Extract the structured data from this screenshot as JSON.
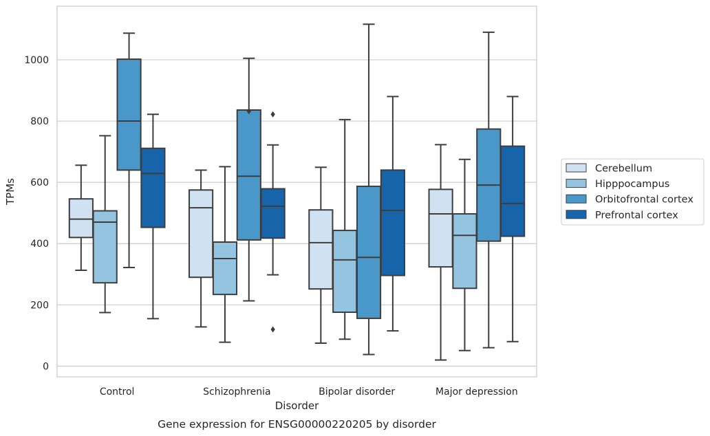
{
  "chart_data": {
    "type": "boxplot",
    "caption": "Gene expression for ENSG00000220205 by disorder",
    "xlabel": "Disorder",
    "ylabel": "TPMs",
    "ylim": [
      -35,
      1175
    ],
    "yticks": [
      0,
      200,
      400,
      600,
      800,
      1000
    ],
    "grid": "horizontal",
    "legend_position": "right",
    "categories": [
      "Control",
      "Schizophrenia",
      "Bipolar disorder",
      "Major depression"
    ],
    "series": [
      {
        "name": "Cerebellum",
        "color": "#d0e1f2",
        "boxes": [
          {
            "whisker_low": 313,
            "q1": 420,
            "median": 480,
            "q3": 546,
            "whisker_high": 656,
            "outliers": []
          },
          {
            "whisker_low": 128,
            "q1": 290,
            "median": 517,
            "q3": 575,
            "whisker_high": 640,
            "outliers": []
          },
          {
            "whisker_low": 75,
            "q1": 252,
            "median": 403,
            "q3": 510,
            "whisker_high": 649,
            "outliers": []
          },
          {
            "whisker_low": 20,
            "q1": 324,
            "median": 497,
            "q3": 577,
            "whisker_high": 723,
            "outliers": []
          }
        ]
      },
      {
        "name": "Hipppocampus",
        "color": "#94c4df",
        "boxes": [
          {
            "whisker_low": 175,
            "q1": 272,
            "median": 470,
            "q3": 507,
            "whisker_high": 752,
            "outliers": []
          },
          {
            "whisker_low": 78,
            "q1": 234,
            "median": 351,
            "q3": 405,
            "whisker_high": 651,
            "outliers": []
          },
          {
            "whisker_low": 88,
            "q1": 176,
            "median": 347,
            "q3": 443,
            "whisker_high": 805,
            "outliers": []
          },
          {
            "whisker_low": 51,
            "q1": 254,
            "median": 427,
            "q3": 497,
            "whisker_high": 675,
            "outliers": []
          }
        ]
      },
      {
        "name": "Orbitofrontal cortex",
        "color": "#4a98c9",
        "boxes": [
          {
            "whisker_low": 322,
            "q1": 640,
            "median": 800,
            "q3": 1002,
            "whisker_high": 1087,
            "outliers": []
          },
          {
            "whisker_low": 213,
            "q1": 412,
            "median": 620,
            "q3": 836,
            "whisker_high": 1005,
            "outliers": [
              832
            ]
          },
          {
            "whisker_low": 38,
            "q1": 156,
            "median": 355,
            "q3": 587,
            "whisker_high": 1116,
            "outliers": []
          },
          {
            "whisker_low": 60,
            "q1": 408,
            "median": 591,
            "q3": 774,
            "whisker_high": 1090,
            "outliers": []
          }
        ]
      },
      {
        "name": "Prefrontal cortex",
        "color": "#1764ab",
        "boxes": [
          {
            "whisker_low": 155,
            "q1": 453,
            "median": 629,
            "q3": 711,
            "whisker_high": 822,
            "outliers": []
          },
          {
            "whisker_low": 298,
            "q1": 418,
            "median": 522,
            "q3": 579,
            "whisker_high": 722,
            "outliers": [
              120,
              822
            ]
          },
          {
            "whisker_low": 115,
            "q1": 296,
            "median": 508,
            "q3": 640,
            "whisker_high": 880,
            "outliers": []
          },
          {
            "whisker_low": 80,
            "q1": 424,
            "median": 531,
            "q3": 718,
            "whisker_high": 880,
            "outliers": []
          }
        ]
      }
    ]
  }
}
